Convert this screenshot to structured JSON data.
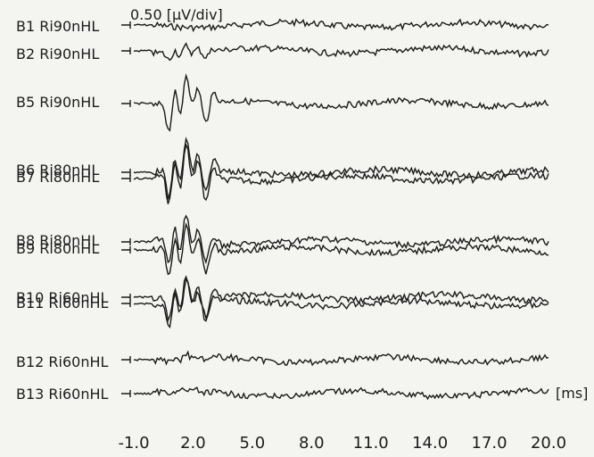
{
  "chart_data": {
    "type": "line",
    "scale_label": "0.50 [µV/div]",
    "x_unit": "[ms]",
    "x_ticks": [
      "-1.0",
      "2.0",
      "5.0",
      "8.0",
      "11.0",
      "14.0",
      "17.0",
      "20.0"
    ],
    "xlim": [
      -1,
      20
    ],
    "grid": false,
    "line_color": "#1a1a1a",
    "traces": [
      {
        "label": "B1 Ri90nHL",
        "wave_amp": 0.0
      },
      {
        "label": "B2 Ri90nHL",
        "wave_amp": 0.4
      },
      {
        "label": "B5 Ri90nHL",
        "wave_amp": 1.6
      },
      {
        "label": "B6 Ri80nHL",
        "wave_amp": 1.7
      },
      {
        "label": "B7 Ri80nHL",
        "wave_amp": 1.7
      },
      {
        "label": "B8 Ri80nHL",
        "wave_amp": 1.5
      },
      {
        "label": "B9 Ri80nHL",
        "wave_amp": 1.5
      },
      {
        "label": "B10 Ri60nHL",
        "wave_amp": 1.3
      },
      {
        "label": "B11 Ri60nHL",
        "wave_amp": 1.3
      },
      {
        "label": "B12 Ri60nHL",
        "wave_amp": 0.2
      },
      {
        "label": "B13 Ri60nHL",
        "wave_amp": 0.1
      }
    ]
  }
}
